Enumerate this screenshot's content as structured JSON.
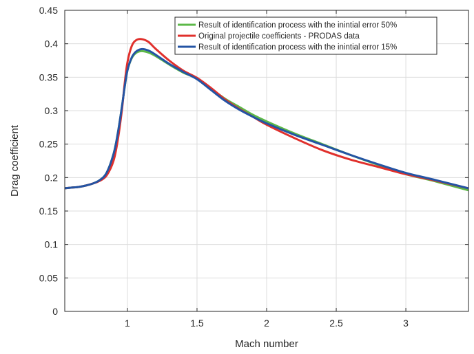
{
  "chart_data": {
    "type": "line",
    "title": "",
    "xlabel": "Mach number",
    "ylabel": "Drag coefficient",
    "xlim": [
      0.55,
      3.45
    ],
    "ylim": [
      0,
      0.45
    ],
    "x_ticks": [
      1,
      1.5,
      2,
      2.5,
      3
    ],
    "x_tick_labels": [
      "1",
      "1.5",
      "2",
      "2.5",
      "3"
    ],
    "y_ticks": [
      0,
      0.05,
      0.1,
      0.15,
      0.2,
      0.25,
      0.3,
      0.35,
      0.4,
      0.45
    ],
    "y_tick_labels": [
      "0",
      "0.05",
      "0.1",
      "0.15",
      "0.2",
      "0.25",
      "0.3",
      "0.35",
      "0.4",
      "0.45"
    ],
    "grid": true,
    "legend_position": "top-right",
    "series": [
      {
        "name": "Result of identification process with the inintial error 50%",
        "color": "#5cb848",
        "x": [
          0.55,
          0.6,
          0.65,
          0.7,
          0.75,
          0.8,
          0.85,
          0.9,
          0.93,
          0.96,
          0.98,
          1.0,
          1.03,
          1.06,
          1.1,
          1.15,
          1.2,
          1.3,
          1.4,
          1.5,
          1.6,
          1.7,
          1.8,
          1.9,
          2.0,
          2.2,
          2.4,
          2.6,
          2.8,
          3.0,
          3.2,
          3.45
        ],
        "y": [
          0.184,
          0.185,
          0.186,
          0.188,
          0.191,
          0.196,
          0.207,
          0.235,
          0.265,
          0.305,
          0.335,
          0.36,
          0.378,
          0.386,
          0.389,
          0.387,
          0.382,
          0.369,
          0.357,
          0.348,
          0.333,
          0.318,
          0.306,
          0.294,
          0.284,
          0.266,
          0.25,
          0.234,
          0.219,
          0.205,
          0.195,
          0.181
        ]
      },
      {
        "name": "Original projectile coefficients - PRODAS data",
        "color": "#e0302c",
        "x": [
          0.55,
          0.6,
          0.65,
          0.7,
          0.75,
          0.8,
          0.85,
          0.9,
          0.93,
          0.96,
          0.98,
          1.0,
          1.03,
          1.06,
          1.1,
          1.15,
          1.2,
          1.3,
          1.4,
          1.5,
          1.6,
          1.7,
          1.8,
          1.9,
          2.0,
          2.2,
          2.4,
          2.6,
          2.8,
          3.0,
          3.2,
          3.45
        ],
        "y": [
          0.184,
          0.185,
          0.186,
          0.188,
          0.191,
          0.195,
          0.203,
          0.225,
          0.255,
          0.3,
          0.34,
          0.372,
          0.396,
          0.405,
          0.407,
          0.403,
          0.393,
          0.375,
          0.36,
          0.349,
          0.334,
          0.317,
          0.303,
          0.291,
          0.279,
          0.259,
          0.241,
          0.227,
          0.216,
          0.205,
          0.196,
          0.184
        ]
      },
      {
        "name": "Result of identification process with the inintial error 15%",
        "color": "#2454a4",
        "x": [
          0.55,
          0.6,
          0.65,
          0.7,
          0.75,
          0.8,
          0.85,
          0.9,
          0.93,
          0.96,
          0.98,
          1.0,
          1.03,
          1.06,
          1.1,
          1.15,
          1.2,
          1.3,
          1.4,
          1.5,
          1.6,
          1.7,
          1.8,
          1.9,
          2.0,
          2.2,
          2.4,
          2.6,
          2.8,
          3.0,
          3.2,
          3.45
        ],
        "y": [
          0.184,
          0.185,
          0.186,
          0.188,
          0.191,
          0.196,
          0.207,
          0.235,
          0.265,
          0.305,
          0.335,
          0.36,
          0.379,
          0.388,
          0.392,
          0.39,
          0.384,
          0.37,
          0.358,
          0.347,
          0.331,
          0.315,
          0.302,
          0.291,
          0.281,
          0.264,
          0.249,
          0.234,
          0.22,
          0.207,
          0.197,
          0.184
        ]
      }
    ]
  }
}
